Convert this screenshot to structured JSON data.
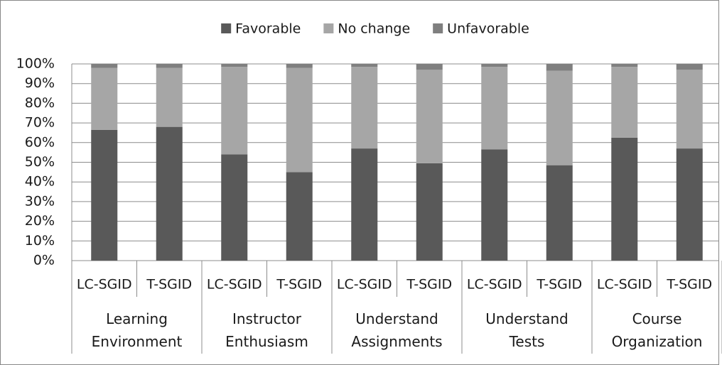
{
  "chart_data": {
    "type": "stacked_bar",
    "categories": [
      "LC-SGID",
      "T-SGID",
      "LC-SGID",
      "T-SGID",
      "LC-SGID",
      "T-SGID",
      "LC-SGID",
      "T-SGID",
      "LC-SGID",
      "T-SGID"
    ],
    "groups": [
      "Learning Environment",
      "Instructor Enthusiasm",
      "Understand Assignments",
      "Understand Tests",
      "Course Organization"
    ],
    "series": [
      {
        "name": "Favorable",
        "color": "#595959",
        "values": [
          66.5,
          68,
          54,
          45,
          57,
          49.5,
          56.5,
          48.5,
          62.5,
          57
        ]
      },
      {
        "name": "No change",
        "color": "#a6a6a6",
        "values": [
          31.5,
          30,
          44.5,
          53,
          41.5,
          47.5,
          42,
          48,
          36,
          40
        ]
      },
      {
        "name": "Unfavorable",
        "color": "#7f7f7f",
        "values": [
          2,
          2,
          1.5,
          2,
          1.5,
          3,
          1.5,
          3.5,
          1.5,
          3
        ]
      }
    ],
    "ylim": [
      0,
      100
    ],
    "yticks": [
      {
        "value": 0,
        "label": "0%"
      },
      {
        "value": 10,
        "label": "10%"
      },
      {
        "value": 20,
        "label": "20%"
      },
      {
        "value": 30,
        "label": "30%"
      },
      {
        "value": 40,
        "label": "40%"
      },
      {
        "value": 50,
        "label": "50%"
      },
      {
        "value": 60,
        "label": "60%"
      },
      {
        "value": 70,
        "label": "70%"
      },
      {
        "value": 80,
        "label": "80%"
      },
      {
        "value": 90,
        "label": "90%"
      },
      {
        "value": 100,
        "label": "100%"
      }
    ],
    "grid": true,
    "legend": "top"
  }
}
